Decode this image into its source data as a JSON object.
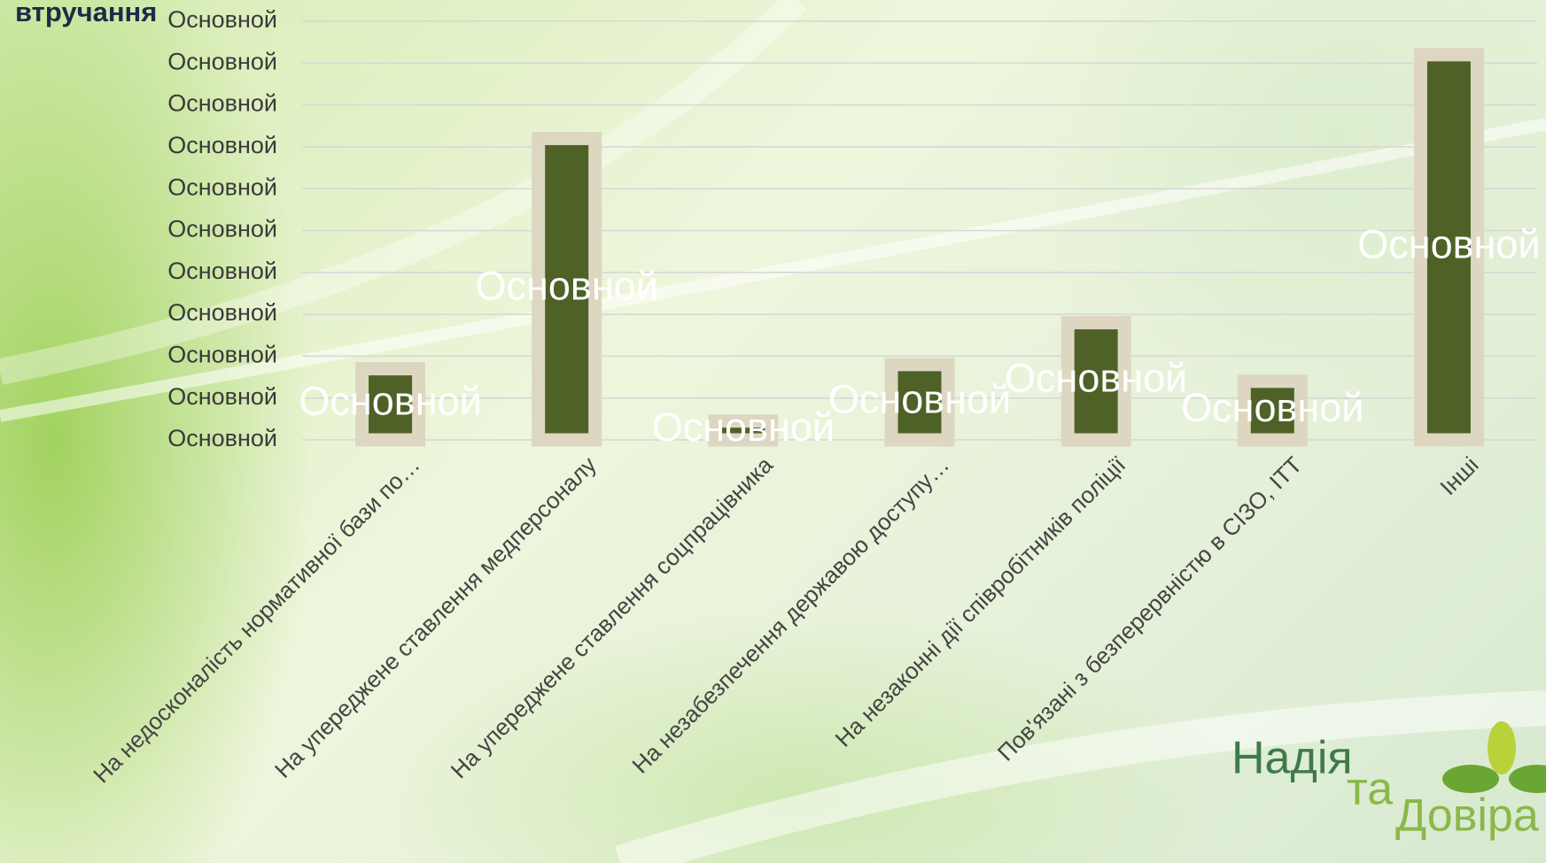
{
  "chart_data": {
    "type": "bar",
    "title": "втручання",
    "categories": [
      "На недосконалість нормативної бази по…",
      "На упереджене ставлення медперсоналу",
      "На упереджене ставлення соцпрацівника",
      "На незабезпечення державою доступу…",
      "На незаконні дії співробітників поліції",
      "Пов'язані з безперервністю в СІЗО, ІТТ",
      "Інші"
    ],
    "values": [
      1.7,
      7.2,
      0.45,
      1.8,
      2.8,
      1.4,
      9.2
    ],
    "value_labels": [
      "Основной",
      "Основной",
      "Основной",
      "Основной",
      "Основной",
      "Основной",
      "Основной"
    ],
    "color": "#4e6126",
    "border_color": "#ddd7c2",
    "ylim": [
      0,
      10
    ],
    "yticks": [
      {
        "value": 0,
        "label": "Основной"
      },
      {
        "value": 1,
        "label": "Основной"
      },
      {
        "value": 2,
        "label": "Основной"
      },
      {
        "value": 3,
        "label": "Основной"
      },
      {
        "value": 4,
        "label": "Основной"
      },
      {
        "value": 5,
        "label": "Основной"
      },
      {
        "value": 6,
        "label": "Основной"
      },
      {
        "value": 7,
        "label": "Основной"
      },
      {
        "value": 8,
        "label": "Основной"
      },
      {
        "value": 9,
        "label": "Основной"
      },
      {
        "value": 10,
        "label": "Основной"
      }
    ],
    "grid": true
  },
  "logo": {
    "line1": "Надія",
    "line2": "та",
    "line3": "Довіра"
  }
}
